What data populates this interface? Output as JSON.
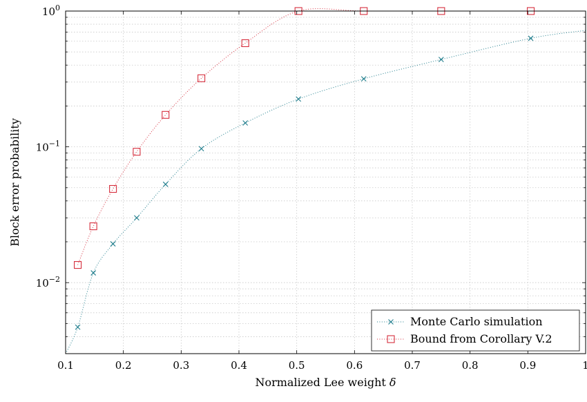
{
  "chart_data": {
    "type": "line",
    "title": "",
    "xlabel": "Normalized Lee weight",
    "xlabel_symbol": "δ",
    "ylabel": "Block error probability",
    "xscale": "linear",
    "yscale": "log",
    "xlim": [
      0.1,
      1.0
    ],
    "ylim": [
      0.003,
      1.0
    ],
    "grid": true,
    "legend_position": "bottom-right",
    "x_ticks": [
      "0.1",
      "0.2",
      "0.3",
      "0.4",
      "0.5",
      "0.6",
      "0.7",
      "0.8",
      "0.9",
      "1"
    ],
    "y_ticks": [
      {
        "base": "10",
        "exp": "−2",
        "value": 0.01
      },
      {
        "base": "10",
        "exp": "−1",
        "value": 0.1
      },
      {
        "base": "10",
        "exp": "0",
        "value": 1
      }
    ],
    "series": [
      {
        "name": "Monte Carlo simulation",
        "color": "#1f7d8c",
        "marker": "x",
        "line_style": "dotted",
        "x": [
          0.121,
          0.148,
          0.182,
          0.223,
          0.273,
          0.335,
          0.411,
          0.503,
          0.616,
          0.75,
          0.905
        ],
        "y": [
          0.0047,
          0.0118,
          0.0193,
          0.03,
          0.053,
          0.097,
          0.15,
          0.225,
          0.317,
          0.44,
          0.63
        ],
        "curve_x": [
          0.1,
          0.121,
          0.148,
          0.182,
          0.223,
          0.273,
          0.335,
          0.411,
          0.503,
          0.616,
          0.75,
          0.905,
          1.0
        ],
        "curve_y": [
          0.003,
          0.0047,
          0.0118,
          0.0193,
          0.03,
          0.053,
          0.097,
          0.15,
          0.225,
          0.317,
          0.44,
          0.63,
          0.72
        ]
      },
      {
        "name": "Bound from Corollary V.2",
        "color": "#d62d3c",
        "marker": "square",
        "line_style": "dotted",
        "x": [
          0.121,
          0.148,
          0.182,
          0.223,
          0.273,
          0.335,
          0.411,
          0.503,
          0.616,
          0.75,
          0.905
        ],
        "y": [
          0.0135,
          0.026,
          0.049,
          0.092,
          0.172,
          0.32,
          0.58,
          1.0,
          1.0,
          1.0,
          1.0
        ]
      }
    ]
  }
}
